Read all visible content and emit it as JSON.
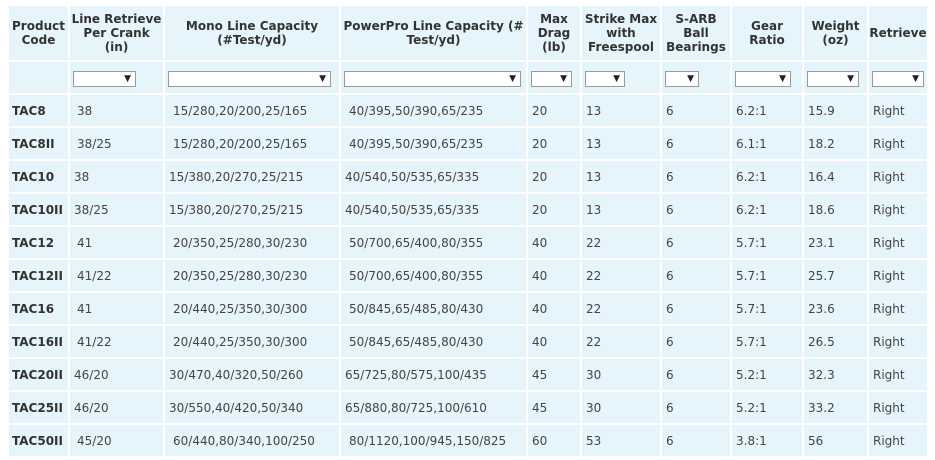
{
  "columns": [
    "Product Code",
    "Line Retrieve Per Crank (in)",
    "Mono Line Capacity (#Test/yd)",
    "PowerPro Line Capacity (# Test/yd)",
    "Max Drag (lb)",
    "Strike Max with Freespool",
    "S-ARB Ball Bearings",
    "Gear Ratio",
    "Weight (oz)",
    "Retrieve"
  ],
  "filters": {
    "selected": [
      "",
      "",
      "",
      "",
      "",
      "",
      "",
      "",
      "",
      ""
    ],
    "arrow_glyph": "▼"
  },
  "rows": [
    [
      "TAC8",
      "38",
      "15/280,20/200,25/165",
      "40/395,50/390,65/235",
      "20",
      "13",
      "6",
      "6.2:1",
      "15.9",
      "Right"
    ],
    [
      "TAC8II",
      "38/25",
      "15/280,20/200,25/165",
      "40/395,50/390,65/235",
      "20",
      "13",
      "6",
      "6.1:1",
      "18.2",
      "Right"
    ],
    [
      "TAC10",
      "38",
      "15/380,20/270,25/215",
      "40/540,50/535,65/335",
      "20",
      "13",
      "6",
      "6.2:1",
      "16.4",
      "Right"
    ],
    [
      "TAC10II",
      "38/25",
      "15/380,20/270,25/215",
      "40/540,50/535,65/335",
      "20",
      "13",
      "6",
      "6.2:1",
      "18.6",
      "Right"
    ],
    [
      "TAC12",
      "41",
      "20/350,25/280,30/230",
      "50/700,65/400,80/355",
      "40",
      "22",
      "6",
      "5.7:1",
      "23.1",
      "Right"
    ],
    [
      "TAC12II",
      "41/22",
      "20/350,25/280,30/230",
      "50/700,65/400,80/355",
      "40",
      "22",
      "6",
      "5.7:1",
      "25.7",
      "Right"
    ],
    [
      "TAC16",
      "41",
      "20/440,25/350,30/300",
      "50/845,65/485,80/430",
      "40",
      "22",
      "6",
      "5.7:1",
      "23.6",
      "Right"
    ],
    [
      "TAC16II",
      "41/22",
      "20/440,25/350,30/300",
      "50/845,65/485,80/430",
      "40",
      "22",
      "6",
      "5.7:1",
      "26.5",
      "Right"
    ],
    [
      "TAC20II",
      "46/20",
      "30/470,40/320,50/260",
      "65/725,80/575,100/435",
      "45",
      "30",
      "6",
      "5.2:1",
      "32.3",
      "Right"
    ],
    [
      "TAC25II",
      "46/20",
      "30/550,40/420,50/340",
      "65/880,80/725,100/610",
      "45",
      "30",
      "6",
      "5.2:1",
      "33.2",
      "Right"
    ],
    [
      "TAC50II",
      "45/20",
      "60/440,80/340,100/250",
      "80/1120,100/945,150/825",
      "60",
      "53",
      "6",
      "3.8:1",
      "56",
      "Right"
    ]
  ]
}
